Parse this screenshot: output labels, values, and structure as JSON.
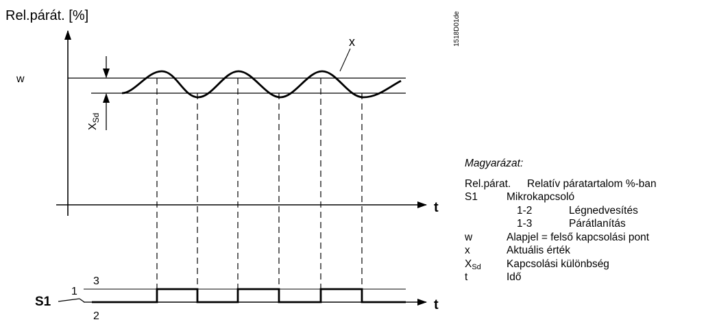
{
  "diagram": {
    "y_axis_label": "Rel.párát.  [%]",
    "setpoint_label": "w",
    "actual_value_label": "x",
    "differential_label_main": "X",
    "differential_label_sub": "Sd",
    "time_label_top": "t",
    "time_label_bottom": "t",
    "s1_label": "S1",
    "s1_pin1": "1",
    "s1_pin2": "2",
    "s1_pin3": "3",
    "figure_code": "1518D01de"
  },
  "legend": {
    "title": "Magyarázat:",
    "items": [
      {
        "key": "Rel.párat.",
        "text": "Relatív páratartalom %-ban"
      },
      {
        "key": "S1",
        "text": "Mikrokapcsoló"
      },
      {
        "code": "1-2",
        "text": "Légnedvesítés"
      },
      {
        "code": "1-3",
        "text": "Párátlanítás"
      },
      {
        "key": "w",
        "text": "Alapjel = felső kapcsolási pont"
      },
      {
        "key": "x",
        "text": "Aktuális érték"
      },
      {
        "key_main": "X",
        "key_sub": "Sd",
        "text": "Kapcsolási különbség"
      },
      {
        "key": "t",
        "text": "Idő"
      }
    ]
  }
}
